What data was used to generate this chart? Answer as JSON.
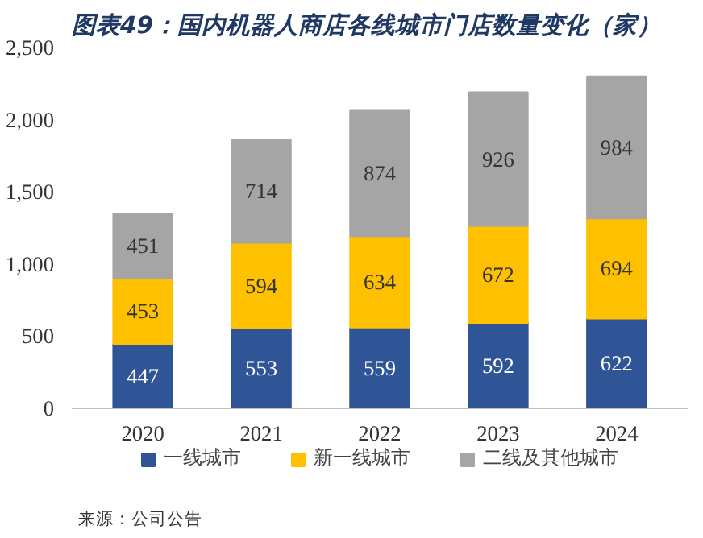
{
  "chart_data": {
    "type": "bar",
    "title": "图表49：国内机器人商店各线城市门店数量变化（家）",
    "stacked": true,
    "data_labels": true,
    "legend": "bottom",
    "grid": false,
    "categories": [
      "2020",
      "2021",
      "2022",
      "2023",
      "2024"
    ],
    "ylim": [
      0,
      2500
    ],
    "yticks": [
      0,
      500,
      {
        "value": 1000,
        "label": "1,000"
      },
      {
        "value": 1500,
        "label": "1,500"
      },
      {
        "value": 2000,
        "label": "2,000"
      },
      {
        "value": 2500,
        "label": "2,500"
      }
    ],
    "series": [
      {
        "name": "一线城市",
        "color": "#2f5597",
        "values": [
          447,
          553,
          559,
          592,
          622
        ]
      },
      {
        "name": "新一线城市",
        "color": "#ffc000",
        "values": [
          453,
          594,
          634,
          672,
          694
        ]
      },
      {
        "name": "二线及其他城市",
        "color": "#a5a5a5",
        "values": [
          451,
          714,
          874,
          926,
          984
        ]
      }
    ],
    "annotations": [
      "来源：公司公告"
    ]
  }
}
